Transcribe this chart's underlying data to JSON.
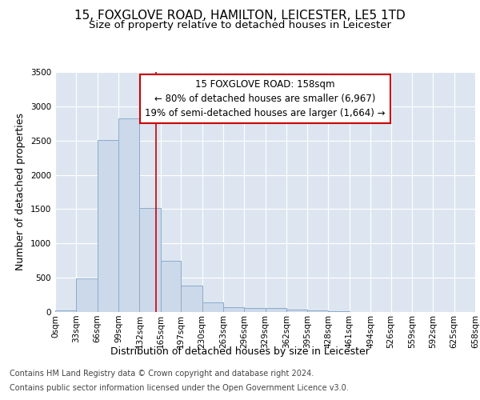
{
  "title_line1": "15, FOXGLOVE ROAD, HAMILTON, LEICESTER, LE5 1TD",
  "title_line2": "Size of property relative to detached houses in Leicester",
  "xlabel": "Distribution of detached houses by size in Leicester",
  "ylabel": "Number of detached properties",
  "bin_edges": [
    0,
    33,
    66,
    99,
    132,
    165,
    197,
    230,
    263,
    296,
    329,
    362,
    395,
    428,
    461,
    494,
    526,
    559,
    592,
    625,
    658
  ],
  "bar_heights": [
    25,
    490,
    2510,
    2820,
    1520,
    750,
    380,
    140,
    75,
    55,
    55,
    30,
    20,
    10,
    5,
    2,
    1,
    1,
    0,
    0
  ],
  "bar_color": "#ccd9ea",
  "bar_edgecolor": "#8aabcc",
  "vline_x": 158,
  "vline_color": "#cc0000",
  "annotation_text": "15 FOXGLOVE ROAD: 158sqm\n← 80% of detached houses are smaller (6,967)\n19% of semi-detached houses are larger (1,664) →",
  "annotation_box_color": "#ffffff",
  "annotation_border_color": "#cc0000",
  "ylim": [
    0,
    3500
  ],
  "yticks": [
    0,
    500,
    1000,
    1500,
    2000,
    2500,
    3000,
    3500
  ],
  "tick_labels": [
    "0sqm",
    "33sqm",
    "66sqm",
    "99sqm",
    "132sqm",
    "165sqm",
    "197sqm",
    "230sqm",
    "263sqm",
    "296sqm",
    "329sqm",
    "362sqm",
    "395sqm",
    "428sqm",
    "461sqm",
    "494sqm",
    "526sqm",
    "559sqm",
    "592sqm",
    "625sqm",
    "658sqm"
  ],
  "footer_line1": "Contains HM Land Registry data © Crown copyright and database right 2024.",
  "footer_line2": "Contains public sector information licensed under the Open Government Licence v3.0.",
  "fig_bg_color": "#ffffff",
  "plot_bg_color": "#dde6f0",
  "grid_color": "#ffffff",
  "title_fontsize": 11,
  "subtitle_fontsize": 9.5,
  "axis_label_fontsize": 9,
  "tick_fontsize": 7.5,
  "footer_fontsize": 7,
  "annot_fontsize": 8.5
}
